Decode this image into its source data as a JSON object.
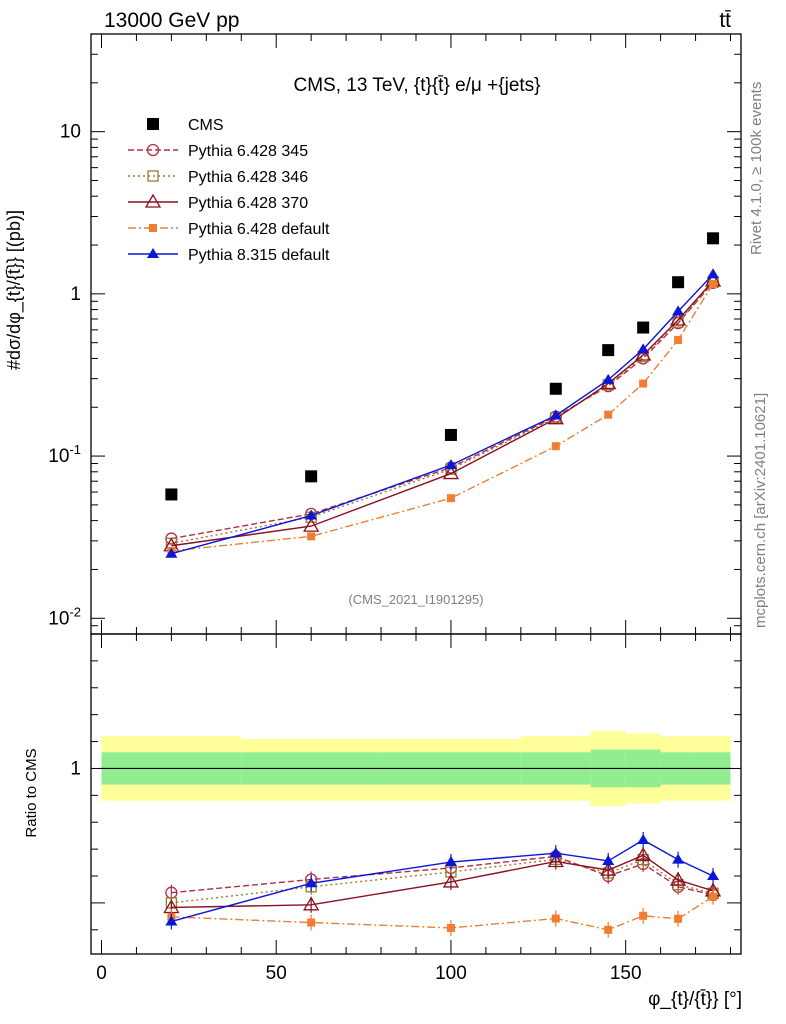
{
  "header": {
    "left": "13000 GeV pp",
    "right": "tt̄",
    "side_top": "Rivet 4.1.0, ≥ 100k events",
    "side_bottom": "mcplots.cern.ch [arXiv:2401.10621]"
  },
  "chart_data": [
    {
      "type": "line",
      "panel": "main",
      "title": "CMS, 13 TeV, {t}{t̄} e/μ +{jets}",
      "watermark": "(CMS_2021_I1901295)",
      "ylabel": "#dσ/dφ_{t}/{t̄}} [(pb)]",
      "yscale": "log",
      "ylim": [
        0.008,
        40
      ],
      "xlim": [
        -3,
        183
      ],
      "ytick_labels": [
        "10^{-2}",
        "10^{-1}",
        "1",
        "10"
      ],
      "x": [
        20,
        60,
        100,
        130,
        145,
        155,
        165,
        175
      ],
      "series": [
        {
          "name": "CMS",
          "color": "#000000",
          "marker": "square-filled",
          "line": "none",
          "values": [
            0.058,
            0.075,
            0.135,
            0.26,
            0.45,
            0.62,
            1.18,
            2.2
          ]
        },
        {
          "name": "Pythia 6.428 345",
          "color": "#b03045",
          "marker": "circle-open",
          "line": "dashed",
          "values": [
            0.031,
            0.044,
            0.085,
            0.175,
            0.27,
            0.4,
            0.66,
            1.17
          ]
        },
        {
          "name": "Pythia 6.428 346",
          "color": "#9a7b34",
          "marker": "square-open",
          "line": "dotted",
          "values": [
            0.029,
            0.042,
            0.083,
            0.172,
            0.275,
            0.41,
            0.67,
            1.18
          ]
        },
        {
          "name": "Pythia 6.428 370",
          "color": "#8b1020",
          "marker": "triangle-open",
          "line": "solid",
          "values": [
            0.028,
            0.037,
            0.078,
            0.17,
            0.28,
            0.42,
            0.69,
            1.2
          ]
        },
        {
          "name": "Pythia 6.428 default",
          "color": "#f07d32",
          "marker": "square-filled-small",
          "line": "dashdot",
          "values": [
            0.026,
            0.032,
            0.055,
            0.115,
            0.18,
            0.28,
            0.52,
            1.15
          ]
        },
        {
          "name": "Pythia 8.315 default",
          "color": "#0a16d8",
          "marker": "triangle-filled",
          "line": "solid",
          "values": [
            0.025,
            0.043,
            0.088,
            0.178,
            0.295,
            0.455,
            0.78,
            1.32
          ]
        }
      ]
    },
    {
      "type": "line",
      "panel": "ratio",
      "ylabel": "Ratio to CMS",
      "xlabel": "φ_{t}/{t̄}} [°]",
      "ylim": [
        0.31,
        1.5
      ],
      "xlim": [
        -3,
        183
      ],
      "ytick_labels": [
        "1"
      ],
      "xtick_labels": [
        "0",
        "50",
        "100",
        "150"
      ],
      "x": [
        20,
        60,
        100,
        130,
        145,
        155,
        165,
        175
      ],
      "bands": {
        "x_edges": [
          0,
          40,
          80,
          120,
          140,
          150,
          160,
          170,
          180
        ],
        "inner": [
          [
            0.94,
            1.06
          ],
          [
            0.94,
            1.06
          ],
          [
            0.94,
            1.06
          ],
          [
            0.94,
            1.06
          ],
          [
            0.93,
            1.07
          ],
          [
            0.93,
            1.07
          ],
          [
            0.94,
            1.06
          ],
          [
            0.94,
            1.06
          ]
        ],
        "outer": [
          [
            0.88,
            1.12
          ],
          [
            0.88,
            1.11
          ],
          [
            0.88,
            1.11
          ],
          [
            0.88,
            1.12
          ],
          [
            0.86,
            1.14
          ],
          [
            0.87,
            1.13
          ],
          [
            0.88,
            1.12
          ],
          [
            0.88,
            1.12
          ]
        ],
        "inner_color": "#90ee90",
        "outer_color": "#ffff99"
      },
      "series": [
        {
          "name": "Pythia 6.428 345",
          "values": [
            0.538,
            0.587,
            0.63,
            0.673,
            0.6,
            0.645,
            0.56,
            0.53
          ]
        },
        {
          "name": "Pythia 6.428 346",
          "values": [
            0.5,
            0.56,
            0.615,
            0.662,
            0.611,
            0.661,
            0.568,
            0.536
          ]
        },
        {
          "name": "Pythia 6.428 370",
          "values": [
            0.483,
            0.493,
            0.578,
            0.654,
            0.622,
            0.677,
            0.585,
            0.545
          ]
        },
        {
          "name": "Pythia 6.428 default",
          "values": [
            0.448,
            0.427,
            0.407,
            0.442,
            0.4,
            0.452,
            0.441,
            0.523
          ]
        },
        {
          "name": "Pythia 8.315 default",
          "values": [
            0.431,
            0.573,
            0.652,
            0.685,
            0.656,
            0.734,
            0.661,
            0.6
          ]
        }
      ]
    }
  ]
}
